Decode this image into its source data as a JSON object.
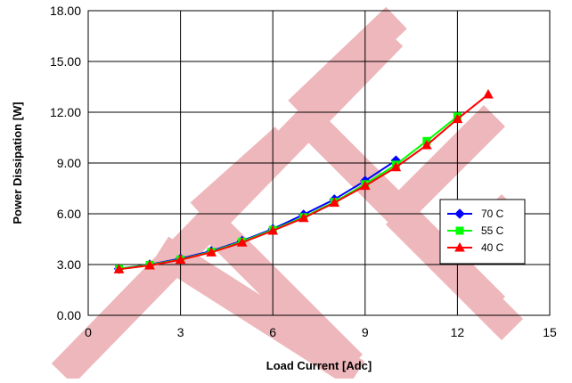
{
  "chart_data": {
    "type": "line",
    "title": "",
    "xlabel": "Load Current [Adc]",
    "ylabel": "Power Dissipation [W]",
    "xlim": [
      0,
      15
    ],
    "ylim": [
      0,
      18
    ],
    "xticks": [
      0,
      3,
      6,
      9,
      12,
      15
    ],
    "yticks": [
      0,
      3,
      6,
      9,
      12,
      15,
      18
    ],
    "xtick_labels": [
      "0",
      "3",
      "6",
      "9",
      "12",
      "15"
    ],
    "ytick_labels": [
      "0.00",
      "3.00",
      "6.00",
      "9.00",
      "12.00",
      "15.00",
      "18.00"
    ],
    "grid": true,
    "legend_position": "right",
    "series": [
      {
        "name": "70 C",
        "color": "#0000ff",
        "marker": "diamond",
        "x": [
          1,
          2,
          3,
          4,
          5,
          6,
          7,
          8,
          9,
          10
        ],
        "y": [
          2.75,
          3.0,
          3.35,
          3.8,
          4.4,
          5.1,
          5.95,
          6.85,
          7.95,
          9.15
        ]
      },
      {
        "name": "55 C",
        "color": "#00ff00",
        "marker": "square",
        "x": [
          1,
          2,
          3,
          4,
          5,
          6,
          7,
          8,
          9,
          10,
          11,
          12
        ],
        "y": [
          2.75,
          2.98,
          3.3,
          3.75,
          4.35,
          5.05,
          5.8,
          6.7,
          7.75,
          8.9,
          10.3,
          11.75
        ]
      },
      {
        "name": "40 C",
        "color": "#ff0000",
        "marker": "triangle",
        "x": [
          1,
          2,
          3,
          4,
          5,
          6,
          7,
          8,
          9,
          10,
          11,
          12,
          13
        ],
        "y": [
          2.72,
          2.95,
          3.28,
          3.72,
          4.3,
          5.0,
          5.75,
          6.65,
          7.65,
          8.75,
          10.05,
          11.6,
          13.05
        ]
      }
    ]
  }
}
